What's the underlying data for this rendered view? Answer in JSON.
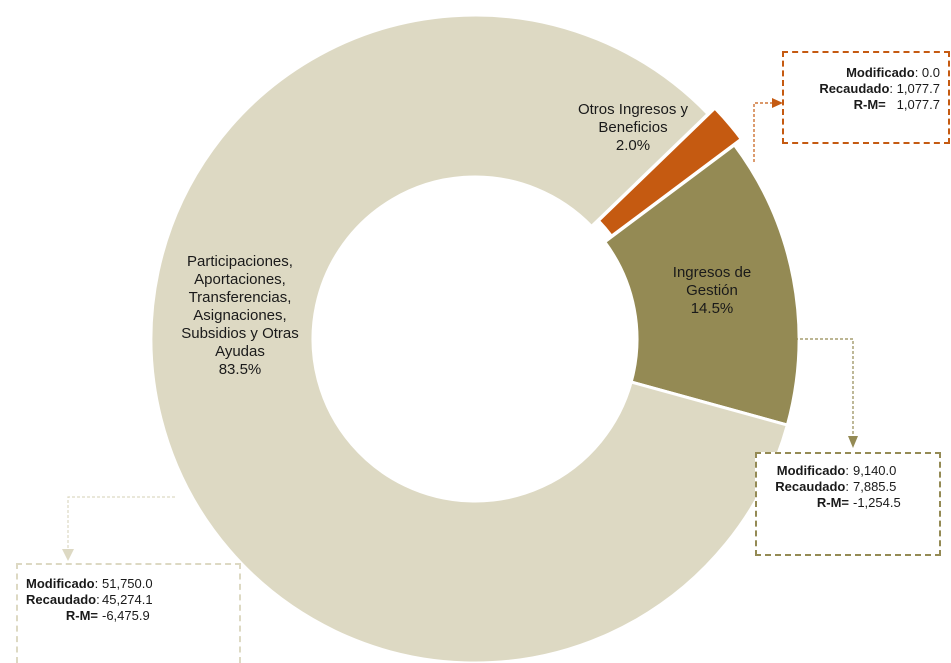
{
  "chart_data": {
    "type": "pie",
    "donut": true,
    "slices": [
      {
        "label": [
          "Otros Ingresos y",
          "Beneficios"
        ],
        "percent": "2.0%",
        "value": 2.0,
        "color": "#c55a11"
      },
      {
        "label": [
          "Ingresos de",
          "Gestión"
        ],
        "percent": "14.5%",
        "value": 14.5,
        "color": "#948a54"
      },
      {
        "label": [
          "Participaciones,",
          "Aportaciones,",
          "Transferencias,",
          "Asignaciones,",
          "Subsidios y Otras",
          "Ayudas"
        ],
        "percent": "83.5%",
        "value": 83.5,
        "color": "#ddd9c3"
      }
    ]
  },
  "callouts": {
    "otros": {
      "color": "#c55a11",
      "modificado_label": "Modificado",
      "modificado": "0.0",
      "recaudado_label": "Recaudado",
      "recaudado": "1,077.7",
      "rm_label": "R-M=",
      "rm": "1,077.7"
    },
    "gestion": {
      "color": "#948a54",
      "modificado_label": "Modificado",
      "modificado": "9,140.0",
      "recaudado_label": "Recaudado",
      "recaudado": "7,885.5",
      "rm_label": "R-M=",
      "rm": "-1,254.5"
    },
    "participaciones": {
      "color": "#ddd9c3",
      "modificado_label": "Modificado",
      "modificado": "51,750.0",
      "recaudado_label": "Recaudado",
      "recaudado": "45,274.1",
      "rm_label": "R-M=",
      "rm": "-6,475.9"
    }
  }
}
